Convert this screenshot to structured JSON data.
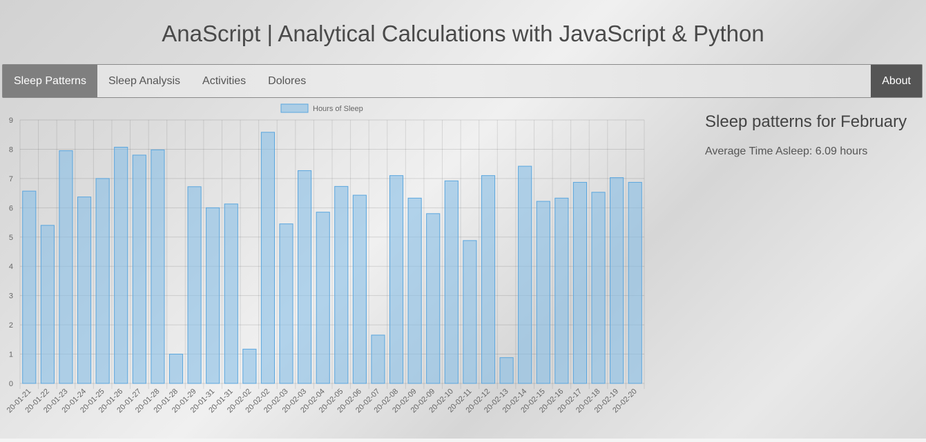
{
  "header": {
    "title": "AnaScript | Analytical Calculations with JavaScript & Python"
  },
  "nav": {
    "items": [
      {
        "label": "Sleep Patterns",
        "active": true
      },
      {
        "label": "Sleep Analysis",
        "active": false
      },
      {
        "label": "Activities",
        "active": false
      },
      {
        "label": "Dolores",
        "active": false
      }
    ],
    "about_label": "About"
  },
  "sidebar": {
    "heading": "Sleep patterns for February",
    "average_text": "Average Time Asleep: 6.09 hours"
  },
  "colors": {
    "bar_fill": "rgba(135,190,230,0.6)",
    "bar_stroke": "#5aa6de",
    "nav_active_bg": "#7f7f7f",
    "about_bg": "#555555"
  },
  "chart_data": {
    "type": "bar",
    "categories": [
      "20-01-21",
      "20-01-22",
      "20-01-23",
      "20-01-24",
      "20-01-25",
      "20-01-26",
      "20-01-27",
      "20-01-28",
      "20-01-28",
      "20-01-29",
      "20-01-31",
      "20-01-31",
      "20-02-02",
      "20-02-02",
      "20-02-03",
      "20-02-03",
      "20-02-04",
      "20-02-05",
      "20-02-06",
      "20-02-07",
      "20-02-08",
      "20-02-09",
      "20-02-09",
      "20-02-10",
      "20-02-11",
      "20-02-12",
      "20-02-13",
      "20-02-14",
      "20-02-15",
      "20-02-16",
      "20-02-17",
      "20-02-18",
      "20-02-19",
      "20-02-20"
    ],
    "series": [
      {
        "name": "Hours of Sleep",
        "values": [
          6.57,
          5.4,
          7.95,
          6.37,
          7.0,
          8.07,
          7.8,
          7.98,
          1.0,
          6.72,
          6.0,
          6.13,
          1.17,
          8.58,
          5.45,
          7.27,
          5.85,
          6.73,
          6.43,
          1.65,
          7.1,
          6.33,
          5.8,
          6.92,
          4.88,
          7.1,
          0.88,
          7.42,
          6.22,
          6.33,
          6.87,
          6.53,
          7.03,
          6.87
        ]
      }
    ],
    "ylim": [
      0,
      9
    ],
    "yticks": [
      0,
      1,
      2,
      3,
      4,
      5,
      6,
      7,
      8,
      9
    ],
    "grid": true,
    "legend": "top-center"
  }
}
